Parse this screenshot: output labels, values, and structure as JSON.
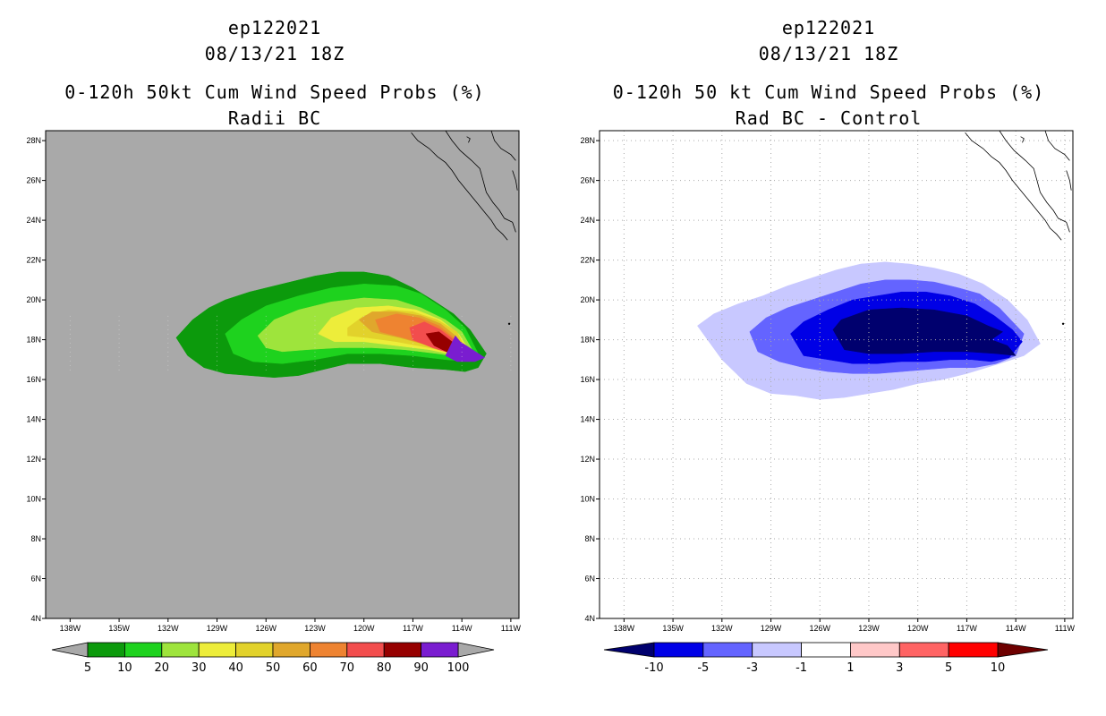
{
  "chart_data": [
    {
      "type": "heatmap",
      "title_lines": [
        "ep122021",
        "08/13/21 18Z",
        "0-120h 50kt Cum Wind Speed Probs (%)",
        "Radii BC"
      ],
      "x_ticks": [
        "138W",
        "135W",
        "132W",
        "129W",
        "126W",
        "123W",
        "120W",
        "117W",
        "114W",
        "111W"
      ],
      "y_ticks": [
        "4N",
        "6N",
        "8N",
        "10N",
        "12N",
        "14N",
        "16N",
        "18N",
        "20N",
        "22N",
        "24N",
        "26N",
        "28N"
      ],
      "xlim": [
        -139.5,
        -110.5
      ],
      "ylim": [
        4,
        28.5
      ],
      "background": "#a9a9a9",
      "grid": false,
      "colorbar": {
        "labels": [
          "5",
          "10",
          "20",
          "30",
          "40",
          "50",
          "60",
          "70",
          "80",
          "90",
          "100"
        ],
        "colors": [
          "#0c9a0c",
          "#1ed21e",
          "#9ee43c",
          "#eded3a",
          "#e2d22b",
          "#e0a72c",
          "#ee8331",
          "#f24d4d",
          "#960000",
          "#7a1dd0"
        ],
        "end_colors": [
          "#a9a9a9",
          "#a9a9a9"
        ]
      },
      "levels": [
        {
          "min": 5,
          "color": "#0c9a0c",
          "lon": [
            -131.5,
            -130.5,
            -129.5,
            -128.5,
            -127,
            -125,
            -123,
            -121.5,
            -120,
            -118.5,
            -117,
            -115.8,
            -114.5,
            -113.5,
            -112.5,
            -113,
            -113.8,
            -115,
            -117,
            -119,
            -121,
            -122.5,
            -124,
            -125.5,
            -127,
            -128.5,
            -129.8,
            -130.8,
            -131.5
          ],
          "lat": [
            18.1,
            19,
            19.6,
            20,
            20.4,
            20.8,
            21.2,
            21.4,
            21.4,
            21.2,
            20.6,
            20,
            19.3,
            18.5,
            17.3,
            16.6,
            16.4,
            16.5,
            16.6,
            16.8,
            16.8,
            16.5,
            16.2,
            16.1,
            16.2,
            16.3,
            16.6,
            17.2,
            18.1
          ]
        },
        {
          "min": 10,
          "color": "#1ed21e",
          "lon": [
            -128.5,
            -127.5,
            -126,
            -124,
            -122,
            -120,
            -118,
            -116.5,
            -115,
            -113.8,
            -113,
            -113.5,
            -115,
            -117,
            -119,
            -121,
            -123,
            -125,
            -126.8,
            -128,
            -128.5
          ],
          "lat": [
            18.3,
            19,
            19.7,
            20.2,
            20.6,
            20.8,
            20.7,
            20.3,
            19.5,
            18.6,
            17.3,
            16.9,
            17,
            17.2,
            17.3,
            17.3,
            17,
            16.8,
            16.9,
            17.3,
            18.3
          ]
        },
        {
          "min": 20,
          "color": "#9ee43c",
          "lon": [
            -126.5,
            -125.5,
            -124,
            -122,
            -120,
            -118,
            -116.5,
            -115,
            -114,
            -113.3,
            -113.8,
            -115.5,
            -117.5,
            -119.5,
            -121.5,
            -123.5,
            -125,
            -126,
            -126.5
          ],
          "lat": [
            18.2,
            19,
            19.5,
            19.9,
            20.1,
            20,
            19.6,
            19,
            18.4,
            17.4,
            17.1,
            17.3,
            17.5,
            17.6,
            17.6,
            17.5,
            17.4,
            17.6,
            18.2
          ]
        },
        {
          "min": 30,
          "color": "#eded3a",
          "lon": [
            -122.8,
            -122,
            -120.5,
            -118.5,
            -116.8,
            -115.3,
            -114.2,
            -113.5,
            -114.2,
            -116,
            -118,
            -120,
            -121.8,
            -122.8
          ],
          "lat": [
            18.3,
            19.1,
            19.6,
            19.7,
            19.5,
            19,
            18.3,
            17.4,
            17.2,
            17.5,
            17.7,
            17.9,
            17.9,
            18.3
          ]
        },
        {
          "min": 40,
          "color": "#e2d22b",
          "lon": [
            -121,
            -120,
            -118.5,
            -117,
            -115.5,
            -114.3,
            -113.7,
            -114.5,
            -116,
            -118,
            -119.8,
            -121,
            -121
          ],
          "lat": [
            18.6,
            19.2,
            19.5,
            19.4,
            19,
            18.4,
            17.4,
            17.3,
            17.6,
            17.9,
            18.1,
            18.2,
            18.6
          ]
        },
        {
          "min": 50,
          "color": "#e0a72c",
          "lon": [
            -120.3,
            -119.5,
            -118,
            -116.5,
            -115.3,
            -114.4,
            -113.8,
            -114.6,
            -116,
            -117.8,
            -119.5,
            -120.3
          ],
          "lat": [
            19,
            19.4,
            19.4,
            19.2,
            18.8,
            18.2,
            17.4,
            17.3,
            17.7,
            18.1,
            18.4,
            19
          ]
        },
        {
          "min": 60,
          "color": "#ee8331",
          "lon": [
            -119.3,
            -118,
            -116.6,
            -115.4,
            -114.5,
            -113.9,
            -114.6,
            -116,
            -117.6,
            -119,
            -119.3
          ],
          "lat": [
            19,
            19.3,
            19.1,
            18.7,
            18.1,
            17.4,
            17.3,
            17.7,
            18.1,
            18.4,
            19
          ]
        },
        {
          "min": 70,
          "color": "#f24d4d",
          "lon": [
            -117.2,
            -116.3,
            -115.3,
            -114.5,
            -114,
            -114.6,
            -115.8,
            -117,
            -117.2
          ],
          "lat": [
            18.6,
            18.9,
            18.5,
            18,
            17.4,
            17.3,
            17.6,
            18,
            18.6
          ]
        },
        {
          "min": 80,
          "color": "#960000",
          "lon": [
            -116.2,
            -115.4,
            -114.6,
            -114.1,
            -114.7,
            -115.7,
            -116.2
          ],
          "lat": [
            18.3,
            18.4,
            17.9,
            17.4,
            17.3,
            17.7,
            18.3
          ]
        },
        {
          "min": 90,
          "color": "#7a1dd0",
          "lon": [
            -114.7,
            -114.4,
            -114.1,
            -112.6,
            -113.2,
            -114.3,
            -115,
            -114.7
          ],
          "lat": [
            17.7,
            18.2,
            17.9,
            17.1,
            16.9,
            16.9,
            17.2,
            17.7
          ]
        }
      ]
    },
    {
      "type": "heatmap",
      "title_lines": [
        "ep122021",
        "08/13/21 18Z",
        "0-120h 50 kt Cum Wind Speed Probs (%)",
        "Rad BC - Control"
      ],
      "x_ticks": [
        "138W",
        "135W",
        "132W",
        "129W",
        "126W",
        "123W",
        "120W",
        "117W",
        "114W",
        "111W"
      ],
      "y_ticks": [
        "4N",
        "6N",
        "8N",
        "10N",
        "12N",
        "14N",
        "16N",
        "18N",
        "20N",
        "22N",
        "24N",
        "26N",
        "28N"
      ],
      "xlim": [
        -139.5,
        -110.5
      ],
      "ylim": [
        4,
        28.5
      ],
      "background": "#ffffff",
      "grid": true,
      "colorbar": {
        "labels": [
          "-10",
          "-5",
          "-3",
          "-1",
          "1",
          "3",
          "5",
          "10"
        ],
        "colors": [
          "#0000e6",
          "#6464ff",
          "#c8c8ff",
          "#ffffff",
          "#ffc8c8",
          "#ff6464",
          "#ff0000"
        ],
        "end_colors": [
          "#00006e",
          "#6e0000"
        ]
      },
      "levels": [
        {
          "min": -1,
          "color": "#c8c8ff",
          "lon": [
            -133.5,
            -132.5,
            -131,
            -129.5,
            -128,
            -126.5,
            -125,
            -123.5,
            -122,
            -120.5,
            -119,
            -117.5,
            -116,
            -114.5,
            -113.3,
            -112.5,
            -113.5,
            -115,
            -117,
            -118.5,
            -120,
            -121.5,
            -123,
            -124.5,
            -126,
            -127.5,
            -129,
            -130.5,
            -132,
            -133.5
          ],
          "lat": [
            18.7,
            19.3,
            19.8,
            20.2,
            20.7,
            21.1,
            21.5,
            21.8,
            21.9,
            21.8,
            21.6,
            21.3,
            20.8,
            20,
            19,
            17.8,
            17.2,
            16.8,
            16.3,
            16,
            15.8,
            15.5,
            15.3,
            15.1,
            15,
            15.2,
            15.3,
            15.8,
            17,
            18.7
          ]
        },
        {
          "min": -3,
          "color": "#6464ff",
          "lon": [
            -130.3,
            -129.3,
            -128,
            -126.5,
            -125,
            -123.5,
            -122,
            -120.5,
            -119,
            -117.5,
            -116.2,
            -115,
            -113.5,
            -114,
            -115.2,
            -116.5,
            -118,
            -119.5,
            -121,
            -122.5,
            -124,
            -125.5,
            -127,
            -128.5,
            -129.8,
            -130.3
          ],
          "lat": [
            18.4,
            19.1,
            19.6,
            20,
            20.4,
            20.8,
            21,
            21,
            20.9,
            20.6,
            20.3,
            19.6,
            18.3,
            17.2,
            16.8,
            16.6,
            16.6,
            16.5,
            16.4,
            16.3,
            16.3,
            16.4,
            16.6,
            16.9,
            17.4,
            18.4
          ]
        },
        {
          "min": -5,
          "color": "#0000e6",
          "lon": [
            -127.8,
            -127,
            -125.5,
            -124,
            -122.5,
            -121,
            -119.5,
            -118,
            -116.5,
            -115.3,
            -114.2,
            -113.6,
            -114.4,
            -115.5,
            -116.7,
            -118,
            -119.5,
            -121,
            -122.5,
            -124,
            -125.5,
            -127,
            -127.8
          ],
          "lat": [
            18.3,
            18.9,
            19.5,
            20,
            20.2,
            20.4,
            20.4,
            20.2,
            19.8,
            19.2,
            18.5,
            17.9,
            17.1,
            16.9,
            17,
            17,
            16.9,
            16.9,
            16.8,
            16.8,
            17,
            17.2,
            18.3
          ]
        },
        {
          "min": -10,
          "color": "#00006e",
          "lon": [
            -125.2,
            -124.7,
            -123,
            -121,
            -119,
            -117,
            -115.7,
            -114.8,
            -115.5,
            -114.5,
            -114,
            -115.2,
            -117,
            -119,
            -121,
            -123,
            -124.5,
            -125.2
          ],
          "lat": [
            18.5,
            19,
            19.5,
            19.6,
            19.5,
            19.2,
            18.7,
            18.4,
            18,
            17.7,
            17.2,
            17.3,
            17.4,
            17.4,
            17.3,
            17.3,
            17.5,
            18.5
          ]
        }
      ]
    }
  ]
}
